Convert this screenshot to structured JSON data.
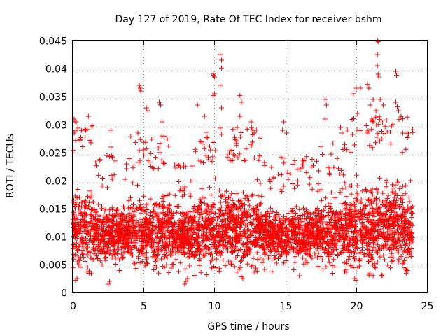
{
  "chart_data": {
    "type": "scatter",
    "title": "Day 127 of 2019, Rate Of TEC Index for receiver bshm",
    "xlabel": "GPS time / hours",
    "ylabel": "ROTI / TECUs",
    "xlim": [
      0,
      25
    ],
    "ylim": [
      0,
      0.045
    ],
    "x_ticks": [
      0,
      5,
      10,
      15,
      20,
      25
    ],
    "x_tick_labels": [
      "0",
      "5",
      "10",
      "15",
      "20",
      "25"
    ],
    "y_ticks": [
      0,
      0.005,
      0.01,
      0.015,
      0.02,
      0.025,
      0.03,
      0.035,
      0.04,
      0.045
    ],
    "y_tick_labels": [
      "0",
      "0.005",
      "0.01",
      "0.015",
      "0.02",
      "0.025",
      "0.03",
      "0.035",
      "0.04",
      "0.045"
    ],
    "grid": true,
    "marker": "+",
    "color": "#ff0000",
    "series": [
      {
        "name": "ROTI",
        "x_range": [
          0,
          24
        ],
        "typical_band": [
          0.003,
          0.027
        ],
        "highlights": [
          {
            "x": 0.1,
            "y": 0.031
          },
          {
            "x": 0.2,
            "y": 0.0305
          },
          {
            "x": 0.1,
            "y": 0.0285
          },
          {
            "x": 1.1,
            "y": 0.0315
          },
          {
            "x": 1.2,
            "y": 0.0272
          },
          {
            "x": 2.7,
            "y": 0.029
          },
          {
            "x": 2.7,
            "y": 0.026
          },
          {
            "x": 4.7,
            "y": 0.037
          },
          {
            "x": 4.75,
            "y": 0.0365
          },
          {
            "x": 4.8,
            "y": 0.036
          },
          {
            "x": 4.6,
            "y": 0.0285
          },
          {
            "x": 5.0,
            "y": 0.0255
          },
          {
            "x": 5.2,
            "y": 0.033
          },
          {
            "x": 5.3,
            "y": 0.0325
          },
          {
            "x": 6.1,
            "y": 0.034
          },
          {
            "x": 6.2,
            "y": 0.0335
          },
          {
            "x": 6.3,
            "y": 0.0305
          },
          {
            "x": 8.8,
            "y": 0.0335
          },
          {
            "x": 9.0,
            "y": 0.027
          },
          {
            "x": 9.3,
            "y": 0.0315
          },
          {
            "x": 9.9,
            "y": 0.039
          },
          {
            "x": 9.95,
            "y": 0.0388
          },
          {
            "x": 10.0,
            "y": 0.0385
          },
          {
            "x": 9.9,
            "y": 0.0352
          },
          {
            "x": 10.0,
            "y": 0.0355
          },
          {
            "x": 10.4,
            "y": 0.0425
          },
          {
            "x": 10.5,
            "y": 0.0415
          },
          {
            "x": 10.5,
            "y": 0.0401
          },
          {
            "x": 10.4,
            "y": 0.037
          },
          {
            "x": 10.5,
            "y": 0.033
          },
          {
            "x": 11.8,
            "y": 0.0352
          },
          {
            "x": 11.9,
            "y": 0.034
          },
          {
            "x": 11.8,
            "y": 0.0315
          },
          {
            "x": 12.6,
            "y": 0.0305
          },
          {
            "x": 12.7,
            "y": 0.029
          },
          {
            "x": 12.8,
            "y": 0.0285
          },
          {
            "x": 14.9,
            "y": 0.0305
          },
          {
            "x": 14.8,
            "y": 0.029
          },
          {
            "x": 15.1,
            "y": 0.0285
          },
          {
            "x": 17.8,
            "y": 0.0345
          },
          {
            "x": 17.9,
            "y": 0.0335
          },
          {
            "x": 17.8,
            "y": 0.031
          },
          {
            "x": 18.9,
            "y": 0.0295
          },
          {
            "x": 19.0,
            "y": 0.0285
          },
          {
            "x": 19.8,
            "y": 0.0355
          },
          {
            "x": 20.0,
            "y": 0.0365
          },
          {
            "x": 20.1,
            "y": 0.032
          },
          {
            "x": 20.3,
            "y": 0.0365
          },
          {
            "x": 20.8,
            "y": 0.0372
          },
          {
            "x": 20.9,
            "y": 0.0365
          },
          {
            "x": 21.0,
            "y": 0.0335
          },
          {
            "x": 21.1,
            "y": 0.031
          },
          {
            "x": 21.2,
            "y": 0.0305
          },
          {
            "x": 21.5,
            "y": 0.045
          },
          {
            "x": 21.55,
            "y": 0.0448
          },
          {
            "x": 21.5,
            "y": 0.0425
          },
          {
            "x": 21.5,
            "y": 0.0405
          },
          {
            "x": 21.55,
            "y": 0.039
          },
          {
            "x": 21.6,
            "y": 0.0385
          },
          {
            "x": 21.7,
            "y": 0.0345
          },
          {
            "x": 21.9,
            "y": 0.0335
          },
          {
            "x": 21.2,
            "y": 0.0345
          },
          {
            "x": 21.4,
            "y": 0.0325
          },
          {
            "x": 22.8,
            "y": 0.0395
          },
          {
            "x": 22.85,
            "y": 0.0388
          },
          {
            "x": 22.8,
            "y": 0.034
          },
          {
            "x": 22.9,
            "y": 0.0332
          },
          {
            "x": 23.0,
            "y": 0.0325
          },
          {
            "x": 22.6,
            "y": 0.0301
          },
          {
            "x": 23.3,
            "y": 0.0285
          },
          {
            "x": 2.5,
            "y": 0.0015
          },
          {
            "x": 2.6,
            "y": 0.002
          },
          {
            "x": 7.9,
            "y": 0.0015
          },
          {
            "x": 8.0,
            "y": 0.002
          },
          {
            "x": 8.1,
            "y": 0.0025
          },
          {
            "x": 0.2,
            "y": 0.0022
          },
          {
            "x": 0.3,
            "y": 0.0025
          },
          {
            "x": 11.9,
            "y": 0.0028
          },
          {
            "x": 12.0,
            "y": 0.0025
          },
          {
            "x": 19.9,
            "y": 0.0025
          },
          {
            "x": 20.0,
            "y": 0.0022
          },
          {
            "x": 16.0,
            "y": 0.003
          },
          {
            "x": 21.2,
            "y": 0.003
          }
        ]
      }
    ]
  }
}
